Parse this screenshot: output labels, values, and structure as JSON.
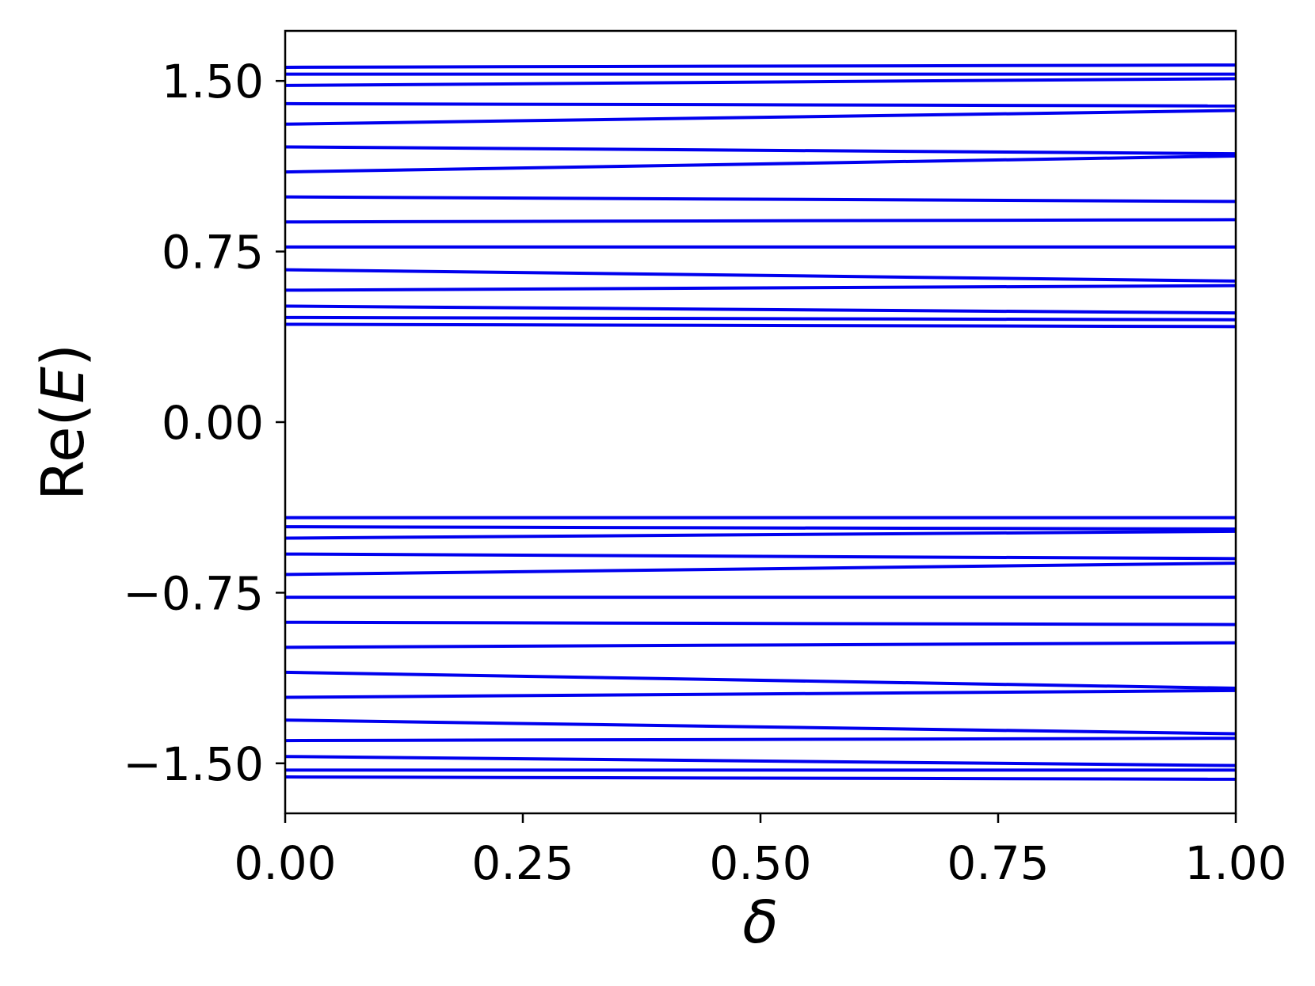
{
  "chart_data": {
    "type": "line",
    "xlabel": "δ",
    "ylabel_prefix": "Re(",
    "ylabel_var": "E",
    "ylabel_suffix": ")",
    "xlim": [
      0,
      1
    ],
    "ylim": [
      -1.72,
      1.72
    ],
    "x_ticks": [
      0,
      0.25,
      0.5,
      0.75,
      1
    ],
    "x_tick_labels": [
      "0.00",
      "0.25",
      "0.50",
      "0.75",
      "1.00"
    ],
    "y_ticks": [
      1.5,
      0.75,
      0,
      -0.75,
      -1.5
    ],
    "y_tick_labels": [
      "1.50",
      "0.75",
      "0.00",
      "−0.75",
      "−1.50"
    ],
    "grid": false,
    "line_color": "#0000ee",
    "x": [
      0,
      1
    ],
    "series": [
      {
        "values": [
          1.56,
          1.57
        ]
      },
      {
        "values": [
          1.53,
          1.53
        ]
      },
      {
        "values": [
          1.48,
          1.51
        ]
      },
      {
        "values": [
          1.4,
          1.39
        ]
      },
      {
        "values": [
          1.31,
          1.37
        ]
      },
      {
        "values": [
          1.21,
          1.18
        ]
      },
      {
        "values": [
          1.1,
          1.17
        ]
      },
      {
        "values": [
          0.99,
          0.97
        ]
      },
      {
        "values": [
          0.88,
          0.89
        ]
      },
      {
        "values": [
          0.77,
          0.77
        ]
      },
      {
        "values": [
          0.67,
          0.62
        ]
      },
      {
        "values": [
          0.58,
          0.6
        ]
      },
      {
        "values": [
          0.51,
          0.48
        ]
      },
      {
        "values": [
          0.46,
          0.45
        ]
      },
      {
        "values": [
          0.43,
          0.42
        ]
      },
      {
        "values": [
          -0.42,
          -0.42
        ]
      },
      {
        "values": [
          -0.46,
          -0.47
        ]
      },
      {
        "values": [
          -0.51,
          -0.48
        ]
      },
      {
        "values": [
          -0.58,
          -0.6
        ]
      },
      {
        "values": [
          -0.67,
          -0.62
        ]
      },
      {
        "values": [
          -0.77,
          -0.77
        ]
      },
      {
        "values": [
          -0.88,
          -0.89
        ]
      },
      {
        "values": [
          -0.99,
          -0.97
        ]
      },
      {
        "values": [
          -1.1,
          -1.17
        ]
      },
      {
        "values": [
          -1.21,
          -1.18
        ]
      },
      {
        "values": [
          -1.31,
          -1.37
        ]
      },
      {
        "values": [
          -1.4,
          -1.39
        ]
      },
      {
        "values": [
          -1.47,
          -1.51
        ]
      },
      {
        "values": [
          -1.53,
          -1.53
        ]
      },
      {
        "values": [
          -1.56,
          -1.57
        ]
      }
    ]
  }
}
